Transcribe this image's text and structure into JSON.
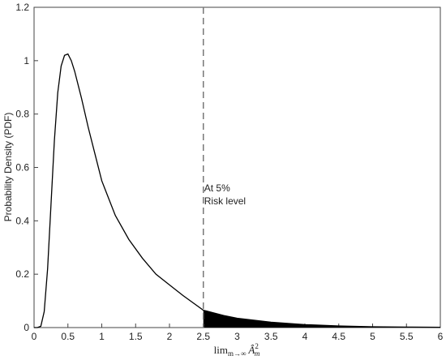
{
  "chart_data": {
    "type": "line",
    "ylabel": "Probability Density (PDF)",
    "xlabel": {
      "main": "lim",
      "sub": "m→∞",
      "var": "Â",
      "varsub": "m",
      "sup": "2"
    },
    "annotation": [
      "At 5%",
      "Risk level"
    ],
    "x": [
      0,
      0.05,
      0.1,
      0.15,
      0.2,
      0.25,
      0.3,
      0.35,
      0.4,
      0.45,
      0.5,
      0.55,
      0.6,
      0.7,
      0.8,
      0.9,
      1.0,
      1.2,
      1.4,
      1.6,
      1.8,
      2.0,
      2.2,
      2.5,
      2.8,
      3.0,
      3.5,
      4.0,
      4.5,
      5.0,
      5.5,
      6.0
    ],
    "series": [
      {
        "color": "#000000",
        "values": [
          0,
          0,
          0.005,
          0.06,
          0.22,
          0.46,
          0.7,
          0.88,
          0.98,
          1.02,
          1.025,
          1.0,
          0.96,
          0.86,
          0.75,
          0.65,
          0.55,
          0.42,
          0.33,
          0.26,
          0.2,
          0.16,
          0.12,
          0.065,
          0.045,
          0.035,
          0.02,
          0.011,
          0.006,
          0.003,
          0.002,
          0.001
        ]
      }
    ],
    "shaded_region": [
      2.5,
      6
    ],
    "shade_color": "#000000",
    "vline": 2.5,
    "vline_color": "#777777",
    "xlim": [
      0,
      6
    ],
    "ylim": [
      0,
      1.2
    ],
    "xticks": [
      0,
      0.5,
      1,
      1.5,
      2,
      2.5,
      3,
      3.5,
      4,
      4.5,
      5,
      5.5,
      6
    ],
    "yticks": [
      0,
      0.2,
      0.4,
      0.6,
      0.8,
      1,
      1.2
    ]
  }
}
